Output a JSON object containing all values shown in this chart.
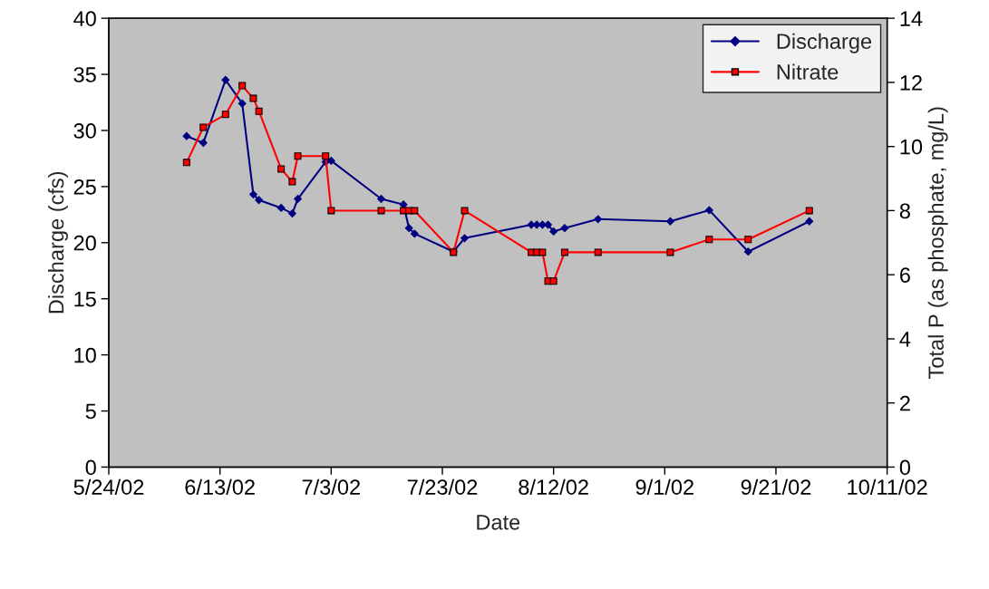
{
  "chart_data": {
    "type": "line",
    "xlabel": "Date",
    "ylabel": "Discharge (cfs)",
    "y2label": "Total P (as phosphate, mg/L)",
    "x": [
      "2002-06-07",
      "2002-06-10",
      "2002-06-14",
      "2002-06-17",
      "2002-06-19",
      "2002-06-20",
      "2002-06-24",
      "2002-06-26",
      "2002-06-27",
      "2002-07-02",
      "2002-07-03",
      "2002-07-12",
      "2002-07-16",
      "2002-07-17",
      "2002-07-18",
      "2002-07-25",
      "2002-07-27",
      "2002-08-08",
      "2002-08-09",
      "2002-08-10",
      "2002-08-11",
      "2002-08-12",
      "2002-08-14",
      "2002-08-20",
      "2002-09-02",
      "2002-09-09",
      "2002-09-16",
      "2002-09-27"
    ],
    "series": [
      {
        "name": "Discharge",
        "color": "#000080",
        "marker": "diamond",
        "values": [
          29.5,
          28.9,
          34.5,
          32.4,
          24.3,
          23.8,
          23.1,
          22.6,
          23.9,
          27.2,
          27.3,
          23.9,
          23.4,
          21.3,
          20.8,
          19.2,
          20.4,
          21.6,
          21.6,
          21.6,
          21.6,
          21.0,
          21.3,
          22.1,
          21.9,
          22.9,
          19.2,
          21.9
        ]
      },
      {
        "name": "Nitrate",
        "color": "#ff0000",
        "marker": "square",
        "axis": "y2",
        "values": [
          9.5,
          10.6,
          11.0,
          11.9,
          11.5,
          11.1,
          9.3,
          8.9,
          9.7,
          9.7,
          8.0,
          8.0,
          8.0,
          8.0,
          8.0,
          6.7,
          8.0,
          6.7,
          6.7,
          6.7,
          5.8,
          5.8,
          6.7,
          6.7,
          6.7,
          7.1,
          7.1,
          8.0
        ]
      }
    ],
    "xlim": [
      "2002-05-24",
      "2002-10-11"
    ],
    "xticks": [
      {
        "value": "2002-05-24",
        "label": "5/24/02"
      },
      {
        "value": "2002-06-13",
        "label": "6/13/02"
      },
      {
        "value": "2002-07-03",
        "label": "7/3/02"
      },
      {
        "value": "2002-07-23",
        "label": "7/23/02"
      },
      {
        "value": "2002-08-12",
        "label": "8/12/02"
      },
      {
        "value": "2002-09-01",
        "label": "9/1/02"
      },
      {
        "value": "2002-09-21",
        "label": "9/21/02"
      },
      {
        "value": "2002-10-11",
        "label": "10/11/02"
      }
    ],
    "ylim": [
      0,
      40
    ],
    "yticks": [
      0,
      5,
      10,
      15,
      20,
      25,
      30,
      35,
      40
    ],
    "y2lim": [
      0,
      14
    ],
    "y2ticks": [
      0,
      2,
      4,
      6,
      8,
      10,
      12,
      14
    ],
    "grid": false,
    "legend": "top right",
    "line_style": "solid"
  }
}
